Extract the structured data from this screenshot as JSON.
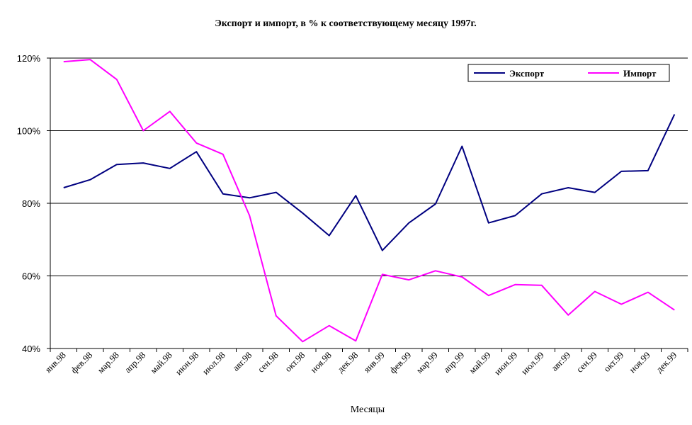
{
  "chart_data": {
    "type": "line",
    "title": "Экспорт и импорт, в % к соответствующему месяцу 1997г.",
    "xlabel": "Месяцы",
    "ylabel": "",
    "ylim": [
      40,
      120
    ],
    "yticks": [
      "40%",
      "60%",
      "80%",
      "100%",
      "120%"
    ],
    "ytick_values": [
      40,
      60,
      80,
      100,
      120
    ],
    "grid": true,
    "legend_position": "top-right",
    "categories": [
      "янв.98",
      "фев.98",
      "мар.98",
      "апр.98",
      "май.98",
      "июн.98",
      "июл.98",
      "авг.98",
      "сен.98",
      "окт.98",
      "ноя.98",
      "дек.98",
      "янв.99",
      "фев.99",
      "мар.99",
      "апр.99",
      "май.99",
      "июн.99",
      "июл.99",
      "авг.99",
      "сен.99",
      "окт.99",
      "ноя.99",
      "дек.99"
    ],
    "series": [
      {
        "name": "Экспорт",
        "color": "#000080",
        "values": [
          84.3,
          86.5,
          90.7,
          91.1,
          89.6,
          94.2,
          82.6,
          81.5,
          83.0,
          77.3,
          71.1,
          82.1,
          67.0,
          74.6,
          79.8,
          95.7,
          74.6,
          76.6,
          82.6,
          84.3,
          83.0,
          88.8,
          89.0,
          104.5
        ]
      },
      {
        "name": "Импорт",
        "color": "#ff00ff",
        "values": [
          119.0,
          119.6,
          114.1,
          100.0,
          105.3,
          96.6,
          93.5,
          76.6,
          49.0,
          41.9,
          46.3,
          42.1,
          60.4,
          58.9,
          61.4,
          59.7,
          54.6,
          57.6,
          57.4,
          49.2,
          55.7,
          52.2,
          55.5,
          50.6
        ]
      }
    ]
  }
}
